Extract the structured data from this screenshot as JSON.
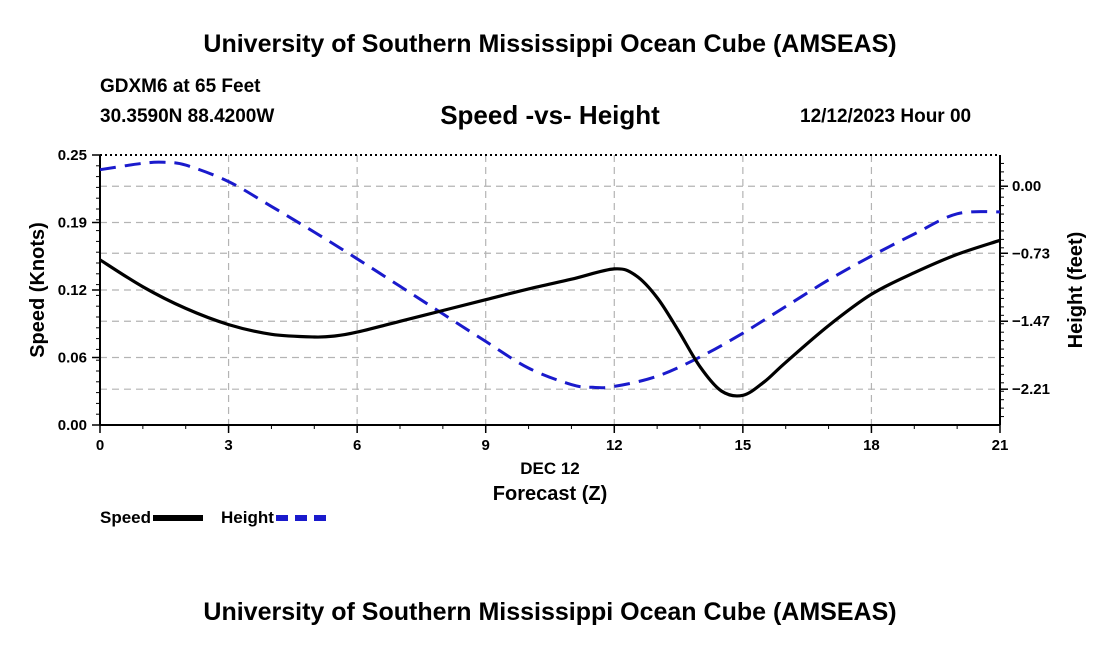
{
  "header": {
    "title": "University of Southern Mississippi Ocean Cube (AMSEAS)",
    "station": "GDXM6 at 65 Feet",
    "coords": "30.3590N  88.4200W",
    "datetime": "12/12/2023 Hour 00"
  },
  "footer": {
    "title": "University of Southern Mississippi Ocean Cube (AMSEAS)"
  },
  "legend": {
    "speed_label": "Speed",
    "height_label": "Height"
  },
  "chart_data": {
    "type": "line",
    "title": "Speed -vs- Height",
    "xlabel": "Forecast (Z)",
    "xdate_label": "DEC 12",
    "ylabel_left": "Speed (Knots)",
    "ylabel_right": "Height (feet)",
    "xlim": [
      0,
      21
    ],
    "ylim_left": [
      0,
      0.25
    ],
    "ylim_right": [
      -2.6,
      0.34
    ],
    "xticks": [
      0,
      3,
      6,
      9,
      12,
      15,
      18,
      21
    ],
    "xtick_labels": [
      "0",
      "3",
      "6",
      "9",
      "12",
      "15",
      "18",
      "21"
    ],
    "yticks_left": [
      0,
      0.0625,
      0.125,
      0.1875,
      0.25
    ],
    "ytick_labels_left": [
      "0.00",
      "0.06",
      "0.12",
      "0.19",
      "0.25"
    ],
    "yticks_right": [
      0.0,
      -0.73,
      -1.47,
      -2.21
    ],
    "ytick_labels_right": [
      "0.00",
      "-0.73",
      "-1.47",
      "-2.21"
    ],
    "grid": true,
    "series": [
      {
        "name": "Speed",
        "axis": "left",
        "color": "#000000",
        "style": "solid",
        "x": [
          0,
          1,
          2,
          3,
          4,
          5,
          5.5,
          6,
          7,
          8,
          9,
          10,
          11,
          12,
          12.5,
          13,
          13.5,
          14,
          14.5,
          15,
          15.5,
          16,
          17,
          18,
          19,
          20,
          21
        ],
        "y": [
          0.153,
          0.128,
          0.108,
          0.093,
          0.084,
          0.0815,
          0.0825,
          0.086,
          0.096,
          0.106,
          0.116,
          0.126,
          0.135,
          0.1445,
          0.1385,
          0.118,
          0.087,
          0.054,
          0.0315,
          0.0275,
          0.04,
          0.058,
          0.092,
          0.121,
          0.141,
          0.158,
          0.171
        ]
      },
      {
        "name": "Height",
        "axis": "right",
        "color": "#1a1acc",
        "style": "dashed",
        "x": [
          0,
          1,
          1.5,
          2,
          3,
          4,
          5,
          6,
          7,
          8,
          9,
          10,
          11,
          11.5,
          12,
          13,
          14,
          15,
          16,
          17,
          18,
          19,
          20,
          21
        ],
        "y": [
          0.18,
          0.25,
          0.26,
          0.23,
          0.05,
          -0.22,
          -0.5,
          -0.79,
          -1.09,
          -1.39,
          -1.69,
          -1.98,
          -2.16,
          -2.19,
          -2.18,
          -2.07,
          -1.86,
          -1.6,
          -1.31,
          -1.02,
          -0.76,
          -0.52,
          -0.3,
          -0.28
        ]
      }
    ]
  }
}
